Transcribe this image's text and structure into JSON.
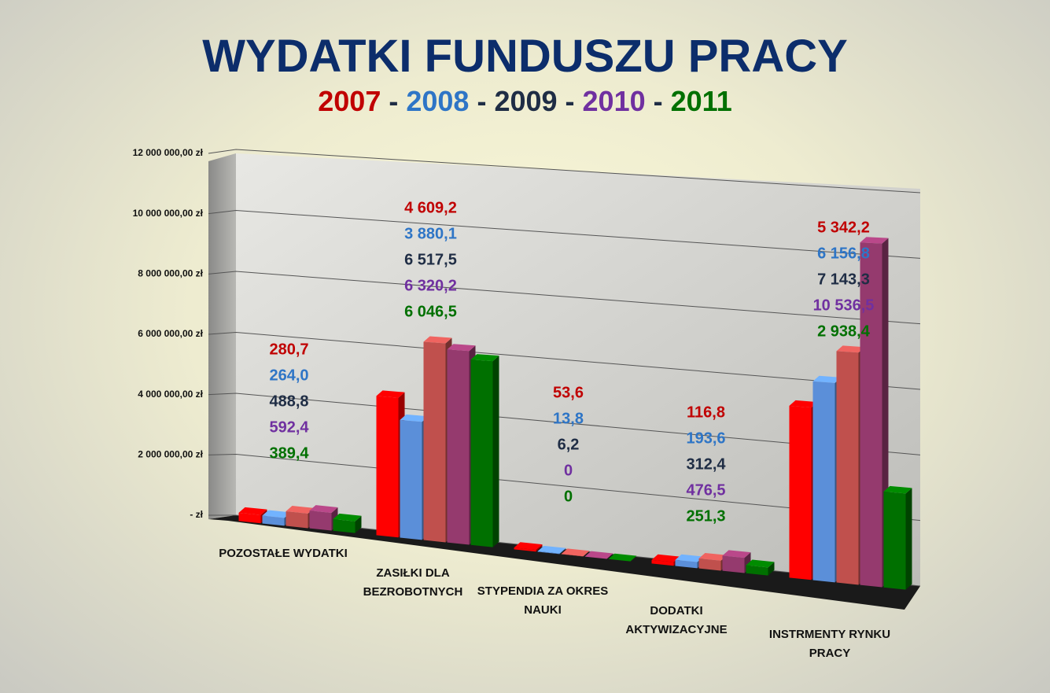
{
  "chart_data": {
    "type": "bar3d",
    "title": "WYDATKI FUNDUSZU PRACY",
    "legend_separator": "-",
    "categories": [
      "POZOSTAŁE WYDATKI",
      "ZASIŁKI DLA BEZROBOTNYCH",
      "STYPENDIA ZA OKRES NAUKI",
      "DODATKI AKTYWIZACYJNE",
      "INSTRMENTY RYNKU PRACY"
    ],
    "series": [
      {
        "name": "2007",
        "color": "#ff0000",
        "label_color": "#c00000",
        "values": [
          280700,
          4609200,
          53600,
          116800,
          5342200
        ],
        "value_labels": [
          "280,7",
          "4 609,2",
          "53,6",
          "116,8",
          "5 342,2"
        ]
      },
      {
        "name": "2008",
        "color": "#5b8fd9",
        "label_color": "#2e75c6",
        "values": [
          264000,
          3880100,
          13800,
          193600,
          6156800
        ],
        "value_labels": [
          "264,0",
          "3 880,1",
          "13,8",
          "193,6",
          "6 156,8"
        ]
      },
      {
        "name": "2009",
        "color": "#c0504d",
        "label_color": "#1f2d45",
        "values": [
          488800,
          6517500,
          6200,
          312400,
          7143300
        ],
        "value_labels": [
          "488,8",
          "6 517,5",
          "6,2",
          "312,4",
          "7 143,3"
        ]
      },
      {
        "name": "2010",
        "color": "#953a6e",
        "label_color": "#7030a0",
        "values": [
          592400,
          6320200,
          0,
          476500,
          10536500
        ],
        "value_labels": [
          "592,4",
          "6 320,2",
          "0",
          "476,5",
          "10 536,5"
        ]
      },
      {
        "name": "2011",
        "color": "#007000",
        "label_color": "#007000",
        "values": [
          389400,
          6046500,
          0,
          251300,
          2938400
        ],
        "value_labels": [
          "389,4",
          "6 046,5",
          "0",
          "251,3",
          "2 938,4"
        ]
      }
    ],
    "ylim": [
      0,
      12000000
    ],
    "yticks": [
      {
        "value": 0,
        "label": "-  zł"
      },
      {
        "value": 2000000,
        "label": "2 000 000,00 zł"
      },
      {
        "value": 4000000,
        "label": "4 000 000,00 zł"
      },
      {
        "value": 6000000,
        "label": "6 000 000,00 zł"
      },
      {
        "value": 8000000,
        "label": "8 000 000,00 zł"
      },
      {
        "value": 10000000,
        "label": "10 000 000,00 zł"
      },
      {
        "value": 12000000,
        "label": "12 000 000,00 zł"
      }
    ],
    "grid": true
  }
}
